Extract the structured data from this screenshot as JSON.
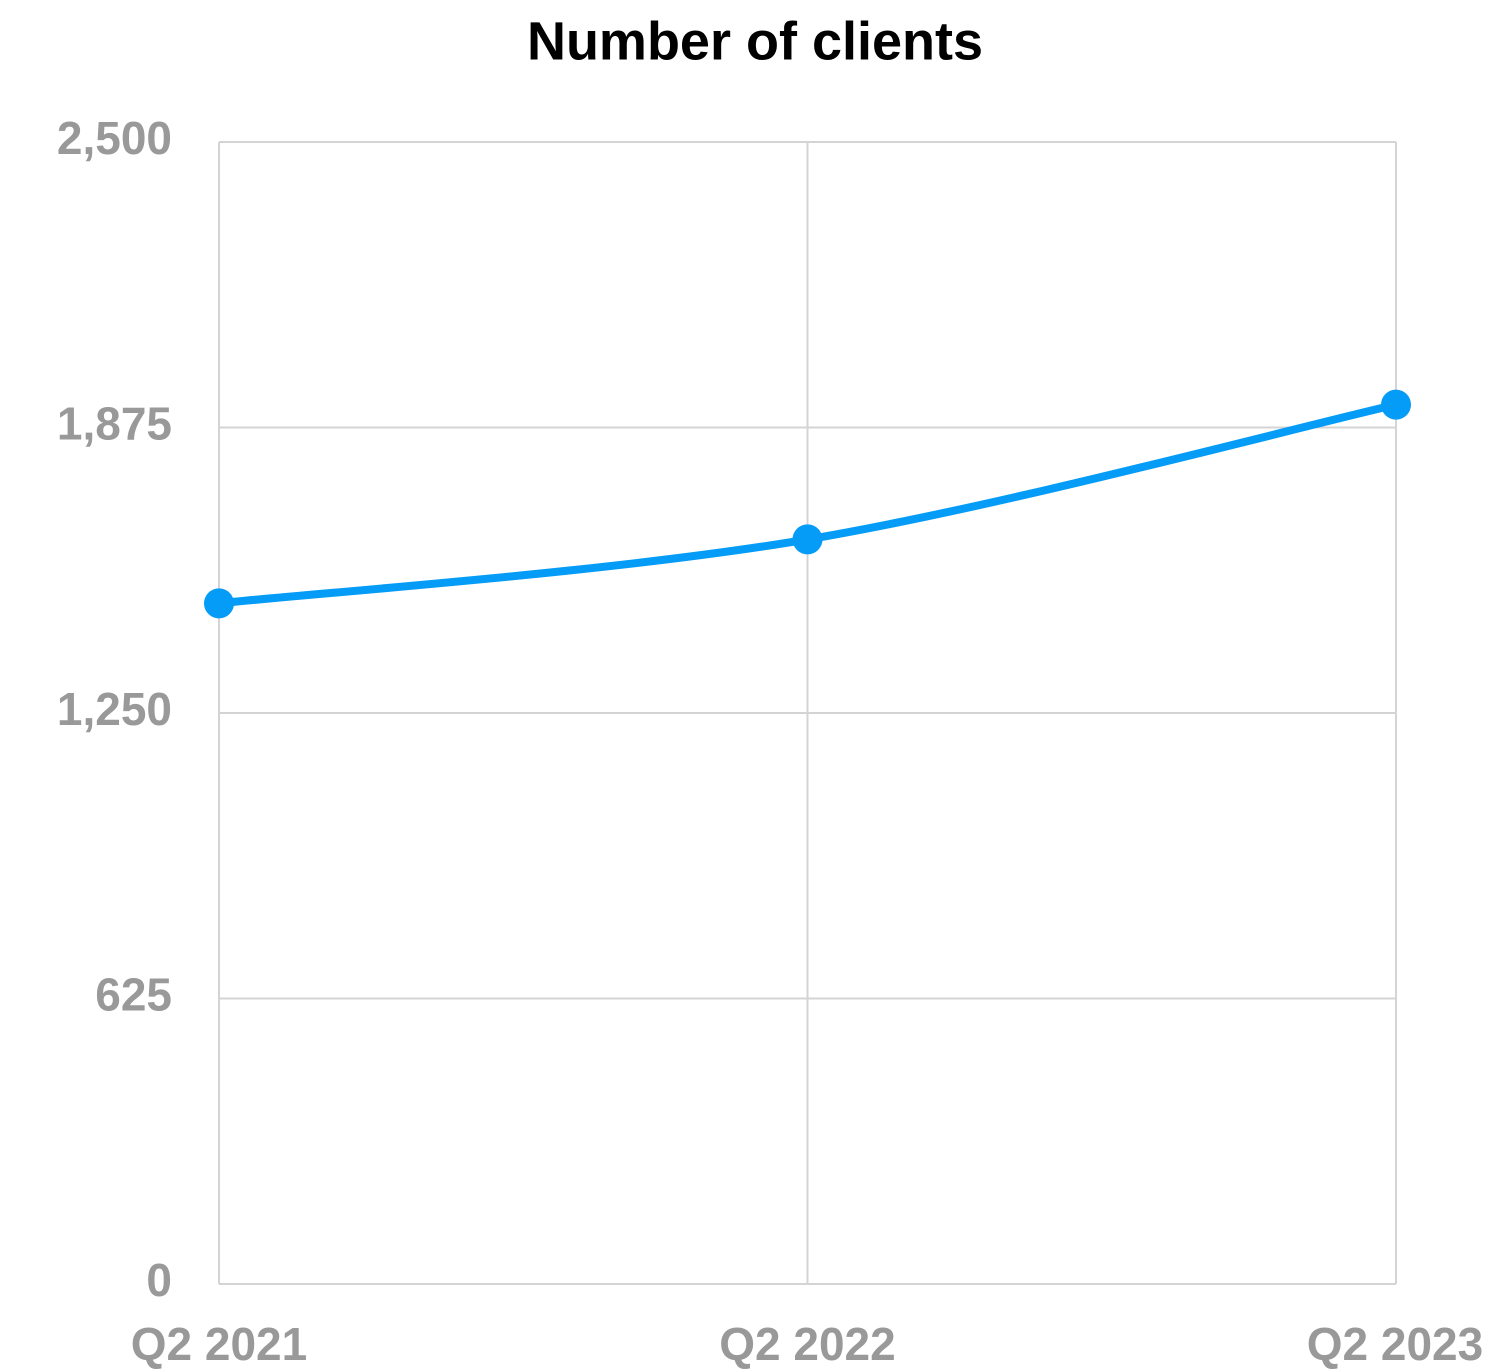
{
  "chart_data": {
    "type": "line",
    "title": "Number of clients",
    "categories": [
      "Q2 2021",
      "Q2 2022",
      "Q2 2023"
    ],
    "series": [
      {
        "name": "Number of clients",
        "color": "#049cf6",
        "values": [
          1490,
          1630,
          1925
        ]
      }
    ],
    "ylim": [
      0,
      2500
    ],
    "yticks": [
      0,
      625,
      {
        "value": 1250,
        "label": "1,250"
      },
      {
        "value": 1875,
        "label": "1,875"
      },
      {
        "value": 2500,
        "label": "2,500"
      }
    ],
    "grid": true,
    "smooth": true
  }
}
